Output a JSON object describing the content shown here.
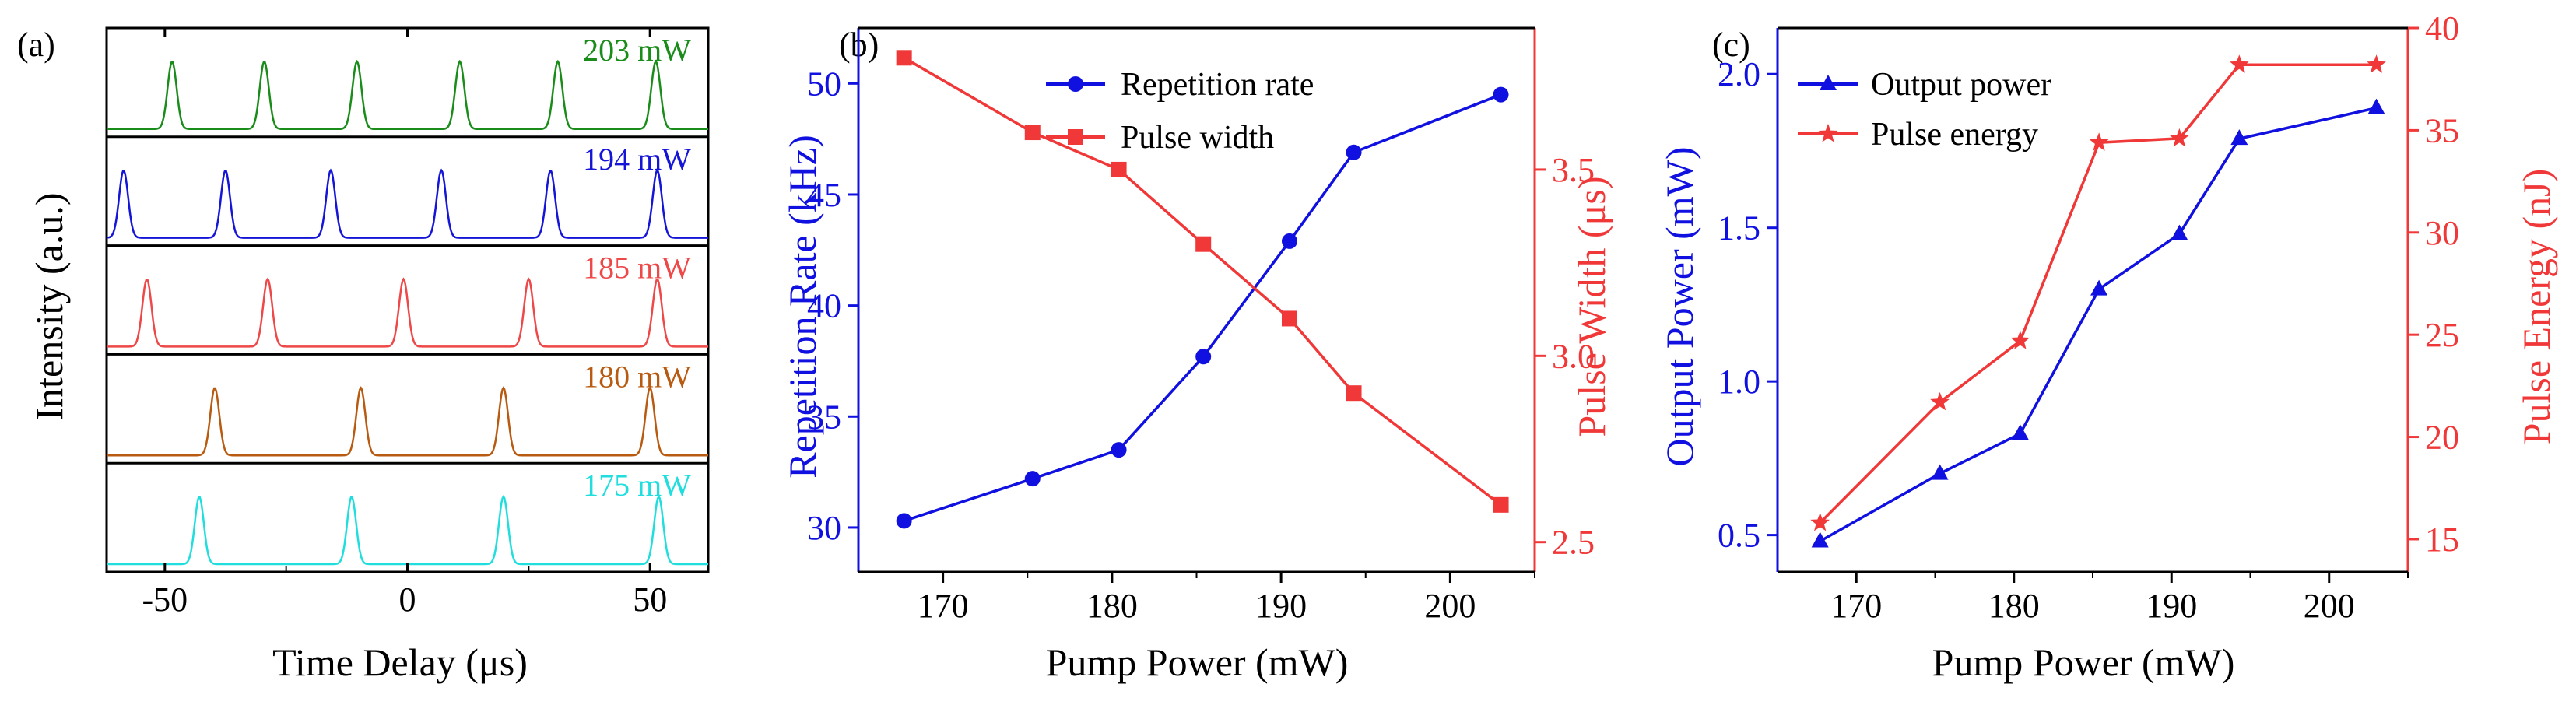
{
  "colors": {
    "axis": "#000000",
    "blue": "#1010e0",
    "red": "#f03838",
    "trace_203": "#1a8c1a",
    "trace_194": "#1515d8",
    "trace_185": "#ee4848",
    "trace_180": "#b85a10",
    "trace_175": "#20dede"
  },
  "chart_data": [
    {
      "type": "line",
      "panel_label": "(a)",
      "description": "Stacked oscilloscope pulse trains",
      "xlabel": "Time Delay (μs)",
      "ylabel": "Intensity (a.u.)",
      "xlim": [
        -62,
        62
      ],
      "x_ticks": [
        -50,
        0,
        50
      ],
      "x_tick_labels": [
        "-50",
        "0",
        "50"
      ],
      "pulse_fwhm_us": 2.2,
      "traces": [
        {
          "label": "203 mW",
          "color_key": "trace_203",
          "peaks": [
            -48.5,
            -29.5,
            -10.4,
            10.8,
            31.0,
            51.2
          ]
        },
        {
          "label": "194 mW",
          "color_key": "trace_194",
          "peaks": [
            -58.5,
            -37.5,
            -15.8,
            7.0,
            29.5,
            51.5
          ]
        },
        {
          "label": "185 mW",
          "color_key": "trace_185",
          "peaks": [
            -53.7,
            -28.8,
            -0.8,
            25.0,
            51.5
          ]
        },
        {
          "label": "180 mW",
          "color_key": "trace_180",
          "peaks": [
            -39.7,
            -9.6,
            19.8,
            50.0
          ]
        },
        {
          "label": "175 mW",
          "color_key": "trace_175",
          "peaks": [
            -42.9,
            -11.5,
            19.8,
            51.8
          ]
        }
      ]
    },
    {
      "type": "line",
      "panel_label": "(b)",
      "xlabel": "Pump Power (mW)",
      "ylabel_left": "Repetition Rate (kHz)",
      "ylabel_right": "Pulse Width (μs)",
      "xlim": [
        165,
        205
      ],
      "x_ticks": [
        170,
        180,
        190,
        200
      ],
      "ylim_left": [
        28,
        52.5
      ],
      "y_ticks_left": [
        30,
        35,
        40,
        45,
        50
      ],
      "ylim_right": [
        2.42,
        3.88
      ],
      "y_ticks_right": [
        2.5,
        3.0,
        3.5
      ],
      "y_tick_labels_right": [
        "2.5",
        "3.0",
        "3.5"
      ],
      "series": [
        {
          "name": "Repetition rate",
          "axis": "left",
          "color_key": "blue",
          "marker": "circle",
          "x": [
            167.7,
            175.3,
            180.4,
            185.4,
            190.5,
            194.3,
            203.0
          ],
          "values": [
            30.3,
            32.2,
            33.5,
            37.7,
            42.9,
            46.9,
            49.5
          ]
        },
        {
          "name": "Pulse width",
          "axis": "right",
          "color_key": "red",
          "marker": "square",
          "x": [
            167.7,
            175.3,
            180.4,
            185.4,
            190.5,
            194.3,
            203.0
          ],
          "values": [
            3.8,
            3.6,
            3.5,
            3.3,
            3.1,
            2.9,
            2.6
          ]
        }
      ]
    },
    {
      "type": "line",
      "panel_label": "(c)",
      "xlabel": "Pump Power (mW)",
      "ylabel_left": "Output Power (mW)",
      "ylabel_right": "Pulse Energy (nJ)",
      "xlim": [
        165,
        205
      ],
      "x_ticks": [
        170,
        180,
        190,
        200
      ],
      "ylim_left": [
        0.38,
        2.15
      ],
      "y_ticks_left": [
        0.5,
        1.0,
        1.5,
        2.0
      ],
      "y_tick_labels_left": [
        "0.5",
        "1.0",
        "1.5",
        "2.0"
      ],
      "ylim_right": [
        13.4,
        40
      ],
      "y_ticks_right": [
        15,
        20,
        25,
        30,
        35,
        40
      ],
      "series": [
        {
          "name": "Output power",
          "axis": "left",
          "color_key": "blue",
          "marker": "triangle",
          "x": [
            167.7,
            175.3,
            180.4,
            185.4,
            190.5,
            194.3,
            203.0
          ],
          "values": [
            0.48,
            0.7,
            0.83,
            1.3,
            1.48,
            1.79,
            1.89
          ]
        },
        {
          "name": "Pulse energy",
          "axis": "right",
          "color_key": "red",
          "marker": "star",
          "x": [
            167.7,
            175.3,
            180.4,
            185.4,
            190.5,
            194.3,
            203.0
          ],
          "values": [
            15.8,
            21.7,
            24.7,
            34.4,
            34.6,
            38.2,
            38.2
          ]
        }
      ]
    }
  ]
}
